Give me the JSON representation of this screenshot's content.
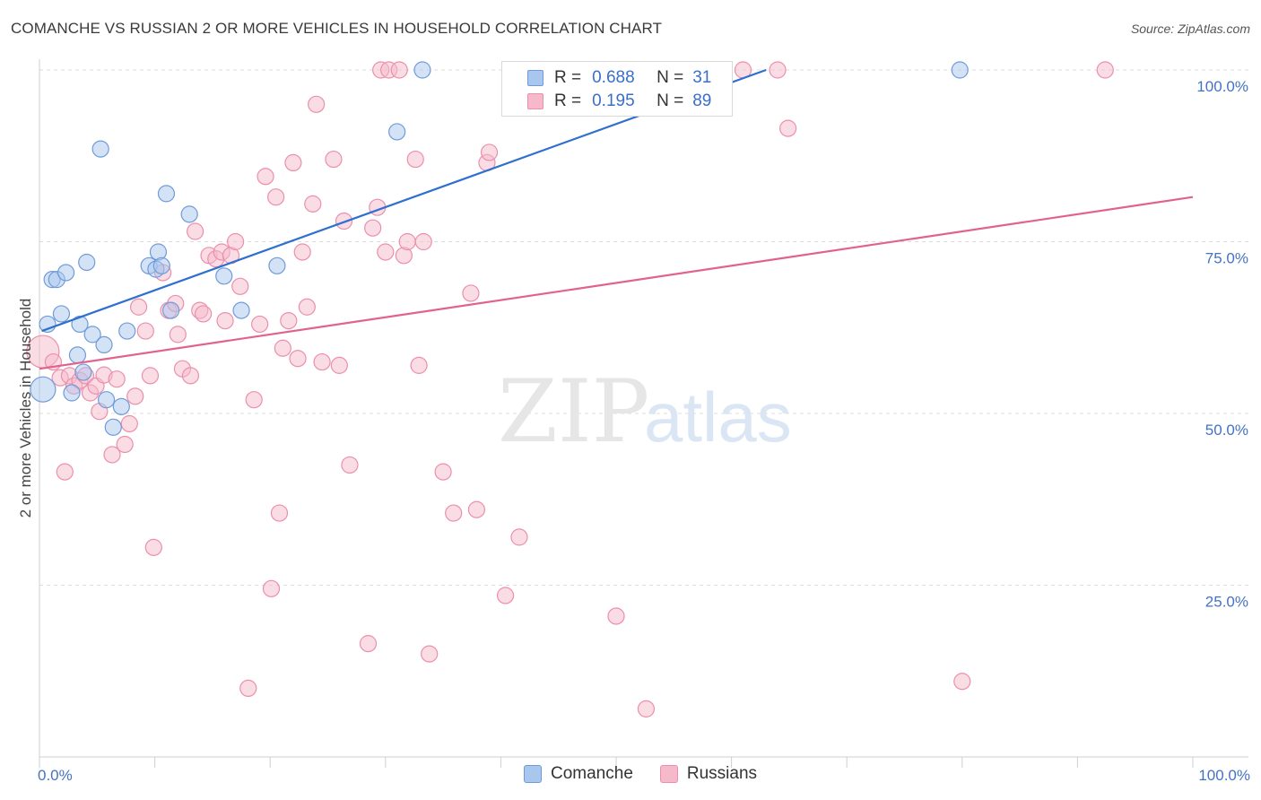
{
  "title": "COMANCHE VS RUSSIAN 2 OR MORE VEHICLES IN HOUSEHOLD CORRELATION CHART",
  "source": "Source: ZipAtlas.com",
  "watermark": {
    "zip": "ZIP",
    "atlas": "atlas"
  },
  "legend": {
    "r_label": "R =",
    "n_label": "N =",
    "comanche": {
      "r": "0.688",
      "n": "31"
    },
    "russians": {
      "r": "0.195",
      "n": "89"
    }
  },
  "colors": {
    "comanche_fill": "#a9c6ee",
    "comanche_stroke": "#6f9bd8",
    "comanche_line": "#2f6fcf",
    "russians_fill": "#f6b9cb",
    "russians_stroke": "#eb8fac",
    "russians_line": "#e2628e",
    "tick_text": "#4472c4",
    "grid": "#dddddd"
  },
  "chart_data": {
    "type": "scatter",
    "xlabel": "",
    "ylabel": "2 or more Vehicles in Household",
    "xlim": [
      0,
      100
    ],
    "ylim": [
      0,
      100
    ],
    "x_tick_labels": [
      "0.0%",
      "100.0%"
    ],
    "y_tick_labels": [
      "100.0%",
      "75.0%",
      "50.0%",
      "25.0%"
    ],
    "y_tick_values": [
      100,
      75,
      50,
      25
    ],
    "grid": true,
    "legend_position": "top-center",
    "series": [
      {
        "name": "Comanche",
        "color": "#a9c6ee",
        "trend": {
          "x": [
            0.2,
            63
          ],
          "y": [
            62,
            100
          ]
        },
        "points": [
          {
            "x": 0.3,
            "y": 53.5,
            "r": 14
          },
          {
            "x": 0.7,
            "y": 63
          },
          {
            "x": 1.1,
            "y": 69.5
          },
          {
            "x": 1.5,
            "y": 69.5
          },
          {
            "x": 1.9,
            "y": 64.5
          },
          {
            "x": 2.3,
            "y": 70.5
          },
          {
            "x": 2.8,
            "y": 53
          },
          {
            "x": 3.3,
            "y": 58.5
          },
          {
            "x": 3.5,
            "y": 63
          },
          {
            "x": 3.8,
            "y": 56
          },
          {
            "x": 4.1,
            "y": 72
          },
          {
            "x": 4.6,
            "y": 61.5
          },
          {
            "x": 5.3,
            "y": 88.5
          },
          {
            "x": 5.6,
            "y": 60
          },
          {
            "x": 5.8,
            "y": 52
          },
          {
            "x": 6.4,
            "y": 48
          },
          {
            "x": 7.1,
            "y": 51
          },
          {
            "x": 7.6,
            "y": 62
          },
          {
            "x": 9.5,
            "y": 71.5
          },
          {
            "x": 10.1,
            "y": 71
          },
          {
            "x": 10.3,
            "y": 73.5
          },
          {
            "x": 10.6,
            "y": 71.5
          },
          {
            "x": 11.0,
            "y": 82
          },
          {
            "x": 11.4,
            "y": 65
          },
          {
            "x": 13.0,
            "y": 79
          },
          {
            "x": 16.0,
            "y": 70
          },
          {
            "x": 17.5,
            "y": 65
          },
          {
            "x": 20.6,
            "y": 71.5
          },
          {
            "x": 31.0,
            "y": 91
          },
          {
            "x": 33.2,
            "y": 100
          },
          {
            "x": 79.8,
            "y": 100
          }
        ]
      },
      {
        "name": "Russians",
        "color": "#f6b9cb",
        "trend": {
          "x": [
            0,
            100
          ],
          "y": [
            56.5,
            81.5
          ]
        },
        "points": [
          {
            "x": 0.3,
            "y": 59,
            "r": 18
          },
          {
            "x": 1.2,
            "y": 57.5
          },
          {
            "x": 1.8,
            "y": 55.2
          },
          {
            "x": 2.2,
            "y": 41.5
          },
          {
            "x": 2.6,
            "y": 55.5
          },
          {
            "x": 3.0,
            "y": 54
          },
          {
            "x": 3.5,
            "y": 54.8
          },
          {
            "x": 4.0,
            "y": 55.5
          },
          {
            "x": 4.4,
            "y": 53
          },
          {
            "x": 4.9,
            "y": 54
          },
          {
            "x": 5.2,
            "y": 50.3
          },
          {
            "x": 5.6,
            "y": 55.6
          },
          {
            "x": 6.3,
            "y": 44
          },
          {
            "x": 6.7,
            "y": 55
          },
          {
            "x": 7.4,
            "y": 45.5
          },
          {
            "x": 7.8,
            "y": 48.5
          },
          {
            "x": 8.3,
            "y": 52.5
          },
          {
            "x": 8.6,
            "y": 65.5
          },
          {
            "x": 9.2,
            "y": 62
          },
          {
            "x": 9.6,
            "y": 55.5
          },
          {
            "x": 9.9,
            "y": 30.5
          },
          {
            "x": 10.7,
            "y": 70.5
          },
          {
            "x": 11.2,
            "y": 65
          },
          {
            "x": 11.8,
            "y": 66
          },
          {
            "x": 12.0,
            "y": 61.5
          },
          {
            "x": 12.4,
            "y": 56.5
          },
          {
            "x": 13.1,
            "y": 55.5
          },
          {
            "x": 13.5,
            "y": 76.5
          },
          {
            "x": 13.9,
            "y": 65
          },
          {
            "x": 14.2,
            "y": 64.5
          },
          {
            "x": 14.7,
            "y": 73
          },
          {
            "x": 15.3,
            "y": 72.5
          },
          {
            "x": 15.8,
            "y": 73.5
          },
          {
            "x": 16.1,
            "y": 63.5
          },
          {
            "x": 16.6,
            "y": 73
          },
          {
            "x": 17.0,
            "y": 75
          },
          {
            "x": 17.4,
            "y": 68.5
          },
          {
            "x": 18.1,
            "y": 10
          },
          {
            "x": 18.6,
            "y": 52
          },
          {
            "x": 19.1,
            "y": 63
          },
          {
            "x": 19.6,
            "y": 84.5
          },
          {
            "x": 20.1,
            "y": 24.5
          },
          {
            "x": 20.5,
            "y": 81.5
          },
          {
            "x": 20.8,
            "y": 35.5
          },
          {
            "x": 21.1,
            "y": 59.5
          },
          {
            "x": 21.6,
            "y": 63.5
          },
          {
            "x": 22.0,
            "y": 86.5
          },
          {
            "x": 22.4,
            "y": 58
          },
          {
            "x": 22.8,
            "y": 73.5
          },
          {
            "x": 23.2,
            "y": 65.5
          },
          {
            "x": 23.7,
            "y": 80.5
          },
          {
            "x": 24.0,
            "y": 95
          },
          {
            "x": 24.5,
            "y": 57.5
          },
          {
            "x": 25.5,
            "y": 87
          },
          {
            "x": 26.0,
            "y": 57
          },
          {
            "x": 26.4,
            "y": 78
          },
          {
            "x": 26.9,
            "y": 42.5
          },
          {
            "x": 28.5,
            "y": 16.5
          },
          {
            "x": 28.9,
            "y": 77
          },
          {
            "x": 29.3,
            "y": 80
          },
          {
            "x": 29.6,
            "y": 100
          },
          {
            "x": 30.0,
            "y": 73.5
          },
          {
            "x": 30.3,
            "y": 100
          },
          {
            "x": 31.2,
            "y": 100
          },
          {
            "x": 31.6,
            "y": 73
          },
          {
            "x": 31.9,
            "y": 75
          },
          {
            "x": 32.6,
            "y": 87
          },
          {
            "x": 32.9,
            "y": 57
          },
          {
            "x": 33.3,
            "y": 75
          },
          {
            "x": 33.8,
            "y": 15
          },
          {
            "x": 35.0,
            "y": 41.5
          },
          {
            "x": 35.9,
            "y": 35.5
          },
          {
            "x": 37.4,
            "y": 67.5
          },
          {
            "x": 37.9,
            "y": 36
          },
          {
            "x": 38.8,
            "y": 86.5
          },
          {
            "x": 39.0,
            "y": 88
          },
          {
            "x": 40.4,
            "y": 23.5
          },
          {
            "x": 41.6,
            "y": 32
          },
          {
            "x": 47.2,
            "y": 100
          },
          {
            "x": 47.9,
            "y": 100
          },
          {
            "x": 50.0,
            "y": 20.5
          },
          {
            "x": 52.2,
            "y": 100
          },
          {
            "x": 52.6,
            "y": 7
          },
          {
            "x": 55.0,
            "y": 100
          },
          {
            "x": 61.0,
            "y": 100
          },
          {
            "x": 64.0,
            "y": 100
          },
          {
            "x": 64.9,
            "y": 91.5
          },
          {
            "x": 80.0,
            "y": 11
          },
          {
            "x": 92.4,
            "y": 100
          }
        ]
      }
    ]
  }
}
